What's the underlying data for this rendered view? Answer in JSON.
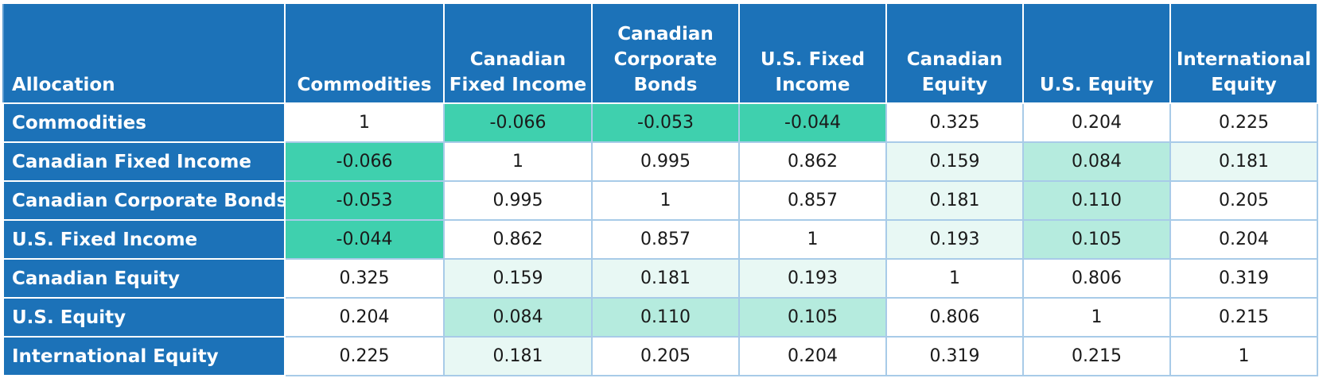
{
  "table": {
    "header": [
      "Allocation",
      "Commodities",
      "Canadian Fixed Income",
      "Canadian Corporate Bonds",
      "U.S. Fixed Income",
      "Canadian Equity",
      "U.S. Equity",
      "International Equity"
    ],
    "rows": [
      [
        "Commodities",
        "1",
        "-0.066",
        "-0.053",
        "-0.044",
        "0.325",
        "0.204",
        "0.225"
      ],
      [
        "Canadian Fixed Income",
        "-0.066",
        "1",
        "0.995",
        "0.862",
        "0.159",
        "0.084",
        "0.181"
      ],
      [
        "Canadian Corporate Bonds",
        "-0.053",
        "0.995",
        "1",
        "0.857",
        "0.181",
        "0.110",
        "0.205"
      ],
      [
        "U.S. Fixed Income",
        "-0.044",
        "0.862",
        "0.857",
        "1",
        "0.193",
        "0.105",
        "0.204"
      ],
      [
        "Canadian Equity",
        "0.325",
        "0.159",
        "0.181",
        "0.193",
        "1",
        "0.806",
        "0.319"
      ],
      [
        "U.S. Equity",
        "0.204",
        "0.084",
        "0.110",
        "0.105",
        "0.806",
        "1",
        "0.215"
      ],
      [
        "International Equity",
        "0.225",
        "0.181",
        "0.205",
        "0.204",
        "0.319",
        "0.215",
        "1"
      ]
    ]
  }
}
